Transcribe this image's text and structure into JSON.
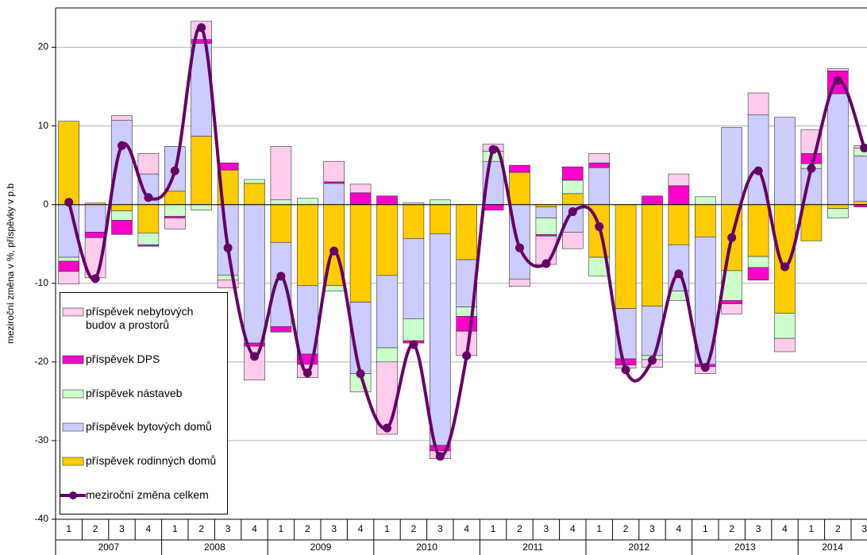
{
  "chart_data": {
    "type": "bar",
    "y_label": "meziroční změna v %, příspěvky v p.b",
    "categories": [
      "1",
      "2",
      "3",
      "4",
      "1",
      "2",
      "3",
      "4",
      "1",
      "2",
      "3",
      "4",
      "1",
      "2",
      "3",
      "4",
      "1",
      "2",
      "3",
      "4",
      "1",
      "2",
      "3",
      "4",
      "1",
      "2",
      "3",
      "4",
      "1",
      "2",
      "3"
    ],
    "groups": [
      "2007",
      "2008",
      "2009",
      "2010",
      "2011",
      "2012",
      "2013",
      "2014"
    ],
    "ylim": [
      -40,
      25
    ],
    "yticks": [
      -40,
      -30,
      -20,
      -10,
      0,
      10,
      20
    ],
    "grid": true,
    "series": [
      {
        "name": "příspěvek rodinných domů",
        "color": "#ffcc00",
        "values": [
          10.6,
          0.2,
          -0.8,
          -3.6,
          1.7,
          8.7,
          4.4,
          2.7,
          -4.8,
          -10.3,
          -10.3,
          -12.4,
          -9,
          -4.3,
          -3.7,
          -7,
          0,
          4.1,
          -0.3,
          1.4,
          -6.7,
          -13.2,
          -12.9,
          -5.1,
          -4.1,
          -8.4,
          -6.6,
          -13.8,
          -4.6,
          -0.5,
          0.4
        ]
      },
      {
        "name": "příspěvek bytových domů",
        "color": "#ccccff",
        "values": [
          -6.7,
          -3.5,
          10.7,
          3.9,
          5.7,
          11.8,
          -9,
          -17.6,
          -10.7,
          -8.7,
          2.7,
          -9.1,
          -9.2,
          -10.2,
          -26.9,
          -6,
          5.5,
          -9.5,
          -1.4,
          -3.5,
          4.7,
          -6.4,
          -6.3,
          -5.9,
          -16.2,
          9.8,
          11.4,
          11.1,
          4.6,
          14.1,
          5.8
        ]
      },
      {
        "name": "příspěvek nástaveb",
        "color": "#ccffcc",
        "values": [
          -0.5,
          0,
          -1.2,
          -1.5,
          -1.5,
          -0.7,
          -0.6,
          0.5,
          0.6,
          0.8,
          -0.7,
          -2.3,
          -1.8,
          -2.8,
          0.6,
          -1.2,
          1.3,
          0,
          -2.1,
          1.7,
          -2.4,
          0,
          -0.5,
          -1.2,
          1,
          -3.8,
          -1.4,
          -3.2,
          0.6,
          -1.2,
          1
        ]
      },
      {
        "name": "příspěvek DPS",
        "color": "#ff00cc",
        "values": [
          -1.3,
          -0.7,
          -1.8,
          -0.2,
          -0.2,
          0.5,
          0.9,
          -0.4,
          -0.7,
          -1.3,
          0.2,
          1.5,
          1.1,
          -0.3,
          -0.7,
          -1.9,
          -0.7,
          0.9,
          -0.2,
          1.7,
          0.6,
          -0.8,
          1.1,
          2.4,
          -0.3,
          -0.4,
          -1.6,
          0,
          1.3,
          2.9,
          -0.3
        ]
      },
      {
        "name": "příspěvek nebytových budov a prostorů",
        "color": "#ffccee",
        "values": [
          -1.6,
          -5.1,
          0.6,
          2.6,
          -1.4,
          2.3,
          -1,
          -4.3,
          6.8,
          -1.7,
          2.6,
          1.1,
          -9.2,
          0.2,
          -1,
          -3.1,
          0.9,
          -0.9,
          -3.6,
          -2.1,
          1.2,
          -0.4,
          -1,
          1.5,
          -0.9,
          -1.3,
          2.8,
          -1.7,
          3,
          0.3,
          0.3
        ]
      }
    ],
    "line": {
      "name": "meziroční změna celkem",
      "color": "#660066",
      "values": [
        0.3,
        -9.4,
        7.5,
        0.9,
        4.3,
        22.5,
        -5.5,
        -19.3,
        -9.1,
        -21.4,
        -5.9,
        -21.5,
        -28.4,
        -17.8,
        -32,
        -19.2,
        7,
        -5.5,
        -7.5,
        -0.9,
        -2.8,
        -21,
        -19.8,
        -8.8,
        -20.7,
        -4.2,
        4.3,
        -7.9,
        4.6,
        15.8,
        7.2
      ]
    }
  }
}
